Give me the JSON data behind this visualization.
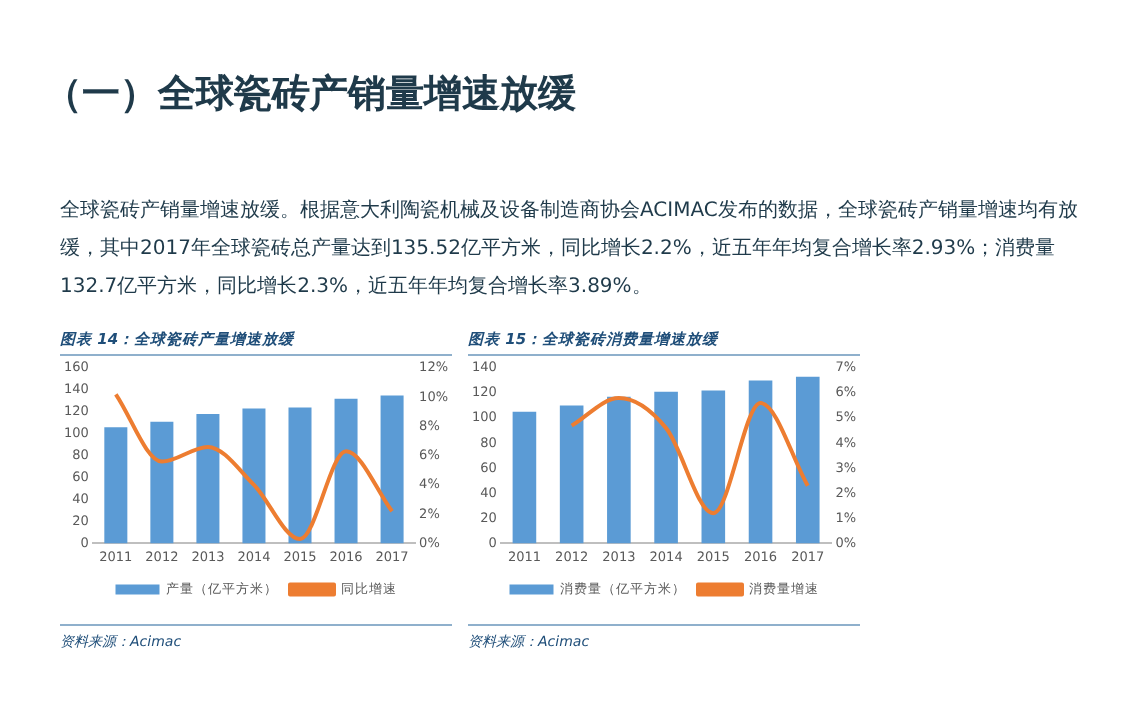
{
  "chart_data": [
    {
      "type": "other",
      "title": "（一）全球瓷砖产销量增速放缓",
      "annotations": [
        "全球瓷砖产销量增速放缓。根据意大利陶瓷机械及设备制造商协会ACIMAC发布的数据，全球瓷砖产销量增速均有放缓，其中2017年全球瓷砖总产量达到135.52亿平方米，同比增长2.2%，近五年年均复合增长率2.93%；消费量132.7亿平方米，同比增长2.3%，近五年年均复合增长率3.89%。"
      ]
    },
    {
      "type": "bar",
      "title": "图表 14：全球瓷砖产量增速放缓",
      "categories": [
        "2011",
        "2012",
        "2013",
        "2014",
        "2015",
        "2016",
        "2017"
      ],
      "series": [
        {
          "name": "产量（亿平方米）",
          "type": "bar",
          "color": "#5b9bd5",
          "values": [
            106,
            111,
            118,
            123,
            124,
            132,
            135
          ]
        },
        {
          "name": "同比增速",
          "type": "line",
          "axis": "y2",
          "color": "#ed7d31",
          "values": [
            10.2,
            5.6,
            6.6,
            4.0,
            0.3,
            6.3,
            2.2
          ]
        }
      ],
      "ylim": [
        0,
        160
      ],
      "yticks": [
        0,
        20,
        40,
        60,
        80,
        100,
        120,
        140,
        160
      ],
      "y2lim": [
        0,
        12
      ],
      "y2ticks": [
        {
          "value": 0,
          "label": "0%"
        },
        {
          "value": 2,
          "label": "2%"
        },
        {
          "value": 4,
          "label": "4%"
        },
        {
          "value": 6,
          "label": "6%"
        },
        {
          "value": 8,
          "label": "8%"
        },
        {
          "value": 10,
          "label": "10%"
        },
        {
          "value": 12,
          "label": "12%"
        }
      ],
      "legend": "bottom",
      "grid": false,
      "marker": "none",
      "line_style": "solid",
      "annotations": [
        "资料来源：Acimac"
      ]
    },
    {
      "type": "bar",
      "title": "图表 15：全球瓷砖消费量增速放缓",
      "categories": [
        "2011",
        "2012",
        "2013",
        "2014",
        "2015",
        "2016",
        "2017"
      ],
      "series": [
        {
          "name": "消费量（亿平方米）",
          "type": "bar",
          "color": "#5b9bd5",
          "values": [
            105,
            110,
            117,
            121,
            122,
            130,
            133
          ]
        },
        {
          "name": "消费量增速",
          "type": "line",
          "axis": "y2",
          "color": "#ed7d31",
          "values": [
            null,
            4.7,
            5.8,
            4.6,
            1.2,
            5.6,
            2.3
          ]
        }
      ],
      "ylim": [
        0,
        140
      ],
      "yticks": [
        0,
        20,
        40,
        60,
        80,
        100,
        120,
        140
      ],
      "y2lim": [
        0,
        7
      ],
      "y2ticks": [
        {
          "value": 0,
          "label": "0%"
        },
        {
          "value": 1,
          "label": "1%"
        },
        {
          "value": 2,
          "label": "2%"
        },
        {
          "value": 3,
          "label": "3%"
        },
        {
          "value": 4,
          "label": "4%"
        },
        {
          "value": 5,
          "label": "5%"
        },
        {
          "value": 6,
          "label": "6%"
        },
        {
          "value": 7,
          "label": "7%"
        }
      ],
      "legend": "bottom",
      "grid": false,
      "marker": "none",
      "line_style": "solid",
      "annotations": [
        "资料来源：Acimac"
      ]
    }
  ]
}
